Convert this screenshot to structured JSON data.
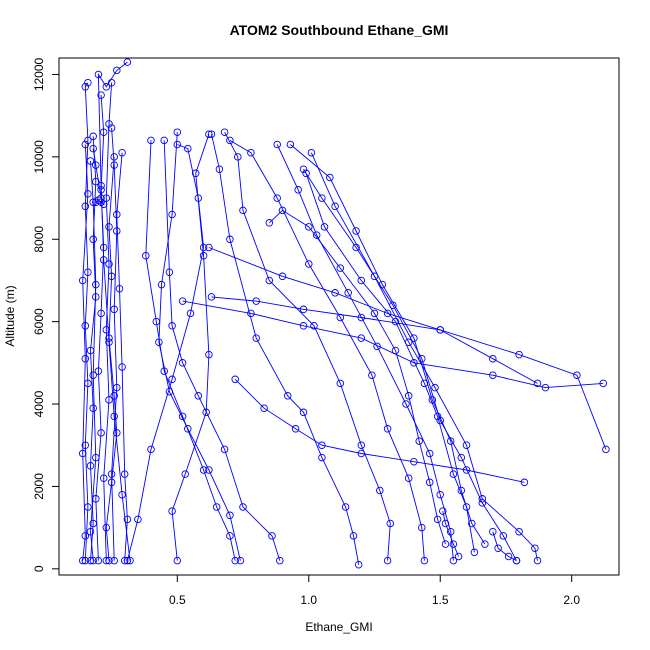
{
  "chart_data": {
    "type": "line",
    "title": "ATOM2 Southbound Ethane_GMI",
    "xlabel": "Ethane_GMI",
    "ylabel": "Altitude (m)",
    "xlim": [
      0.05,
      2.18
    ],
    "ylim": [
      -150,
      12400
    ],
    "x_ticks": [
      0.5,
      1.0,
      1.5,
      2.0
    ],
    "x_tick_labels": [
      "0.5",
      "1.0",
      "1.5",
      "2.0"
    ],
    "y_ticks": [
      0,
      2000,
      4000,
      6000,
      8000,
      10000,
      12000
    ],
    "y_tick_labels": [
      "0",
      "2000",
      "4000",
      "6000",
      "8000",
      "10000",
      "12000"
    ],
    "grid": false,
    "legend": "none",
    "marker": "open-circle",
    "color": "#0000ff",
    "profiles": [
      [
        [
          0.15,
          200
        ],
        [
          0.16,
          1500
        ],
        [
          0.15,
          3000
        ],
        [
          0.16,
          4500
        ],
        [
          0.15,
          5900
        ],
        [
          0.16,
          7200
        ],
        [
          0.15,
          8800
        ],
        [
          0.16,
          10400
        ],
        [
          0.15,
          11700
        ],
        [
          0.16,
          11800
        ]
      ],
      [
        [
          0.17,
          200
        ],
        [
          0.18,
          1100
        ],
        [
          0.17,
          2500
        ],
        [
          0.18,
          3900
        ],
        [
          0.17,
          5300
        ],
        [
          0.19,
          6600
        ],
        [
          0.18,
          8000
        ],
        [
          0.19,
          9400
        ],
        [
          0.18,
          10500
        ]
      ],
      [
        [
          0.2,
          200
        ],
        [
          0.19,
          1700
        ],
        [
          0.21,
          3300
        ],
        [
          0.2,
          4800
        ],
        [
          0.21,
          6200
        ],
        [
          0.22,
          7800
        ],
        [
          0.21,
          9200
        ],
        [
          0.22,
          10600
        ],
        [
          0.21,
          11500
        ]
      ],
      [
        [
          0.23,
          200
        ],
        [
          0.22,
          2200
        ],
        [
          0.24,
          4100
        ],
        [
          0.23,
          5800
        ],
        [
          0.24,
          7400
        ],
        [
          0.23,
          9000
        ],
        [
          0.24,
          10800
        ],
        [
          0.25,
          11800
        ]
      ],
      [
        [
          0.26,
          200
        ],
        [
          0.25,
          2300
        ],
        [
          0.27,
          4400
        ],
        [
          0.26,
          6300
        ],
        [
          0.27,
          8200
        ],
        [
          0.26,
          9800
        ],
        [
          0.25,
          10700
        ]
      ],
      [
        [
          0.18,
          200
        ],
        [
          0.17,
          900
        ],
        [
          0.19,
          2700
        ],
        [
          0.18,
          4700
        ],
        [
          0.19,
          6900
        ],
        [
          0.18,
          8900
        ],
        [
          0.17,
          9900
        ]
      ],
      [
        [
          0.3,
          200
        ],
        [
          0.31,
          1200
        ],
        [
          0.3,
          2300
        ],
        [
          0.29,
          4900
        ],
        [
          0.28,
          6800
        ],
        [
          0.27,
          8600
        ],
        [
          0.29,
          10100
        ]
      ],
      [
        [
          0.14,
          200
        ],
        [
          0.15,
          800
        ],
        [
          0.14,
          2800
        ],
        [
          0.15,
          5100
        ],
        [
          0.14,
          7000
        ],
        [
          0.16,
          9100
        ],
        [
          0.15,
          10300
        ]
      ],
      [
        [
          0.32,
          200
        ],
        [
          0.29,
          1800
        ],
        [
          0.26,
          3700
        ],
        [
          0.24,
          5500
        ],
        [
          0.22,
          7500
        ],
        [
          0.21,
          9300
        ],
        [
          0.2,
          12000
        ],
        [
          0.23,
          11700
        ],
        [
          0.27,
          12100
        ],
        [
          0.31,
          12300
        ]
      ],
      [
        [
          0.19,
          8900
        ],
        [
          0.2,
          8950
        ],
        [
          0.21,
          8900
        ],
        [
          0.22,
          8850
        ],
        [
          0.21,
          9000
        ],
        [
          0.19,
          9800
        ],
        [
          0.18,
          10200
        ]
      ],
      [
        [
          0.24,
          200
        ],
        [
          0.23,
          1000
        ],
        [
          0.25,
          2100
        ],
        [
          0.27,
          3300
        ],
        [
          0.26,
          4200
        ],
        [
          0.24,
          5600
        ],
        [
          0.25,
          7100
        ],
        [
          0.24,
          8300
        ],
        [
          0.26,
          10000
        ]
      ],
      [
        [
          0.72,
          200
        ],
        [
          0.7,
          800
        ],
        [
          0.65,
          1500
        ],
        [
          0.6,
          2400
        ],
        [
          0.52,
          3700
        ],
        [
          0.45,
          4800
        ],
        [
          0.42,
          6000
        ],
        [
          0.38,
          7600
        ],
        [
          0.4,
          10400
        ]
      ],
      [
        [
          0.89,
          200
        ],
        [
          0.86,
          800
        ],
        [
          0.75,
          1500
        ],
        [
          0.68,
          2900
        ],
        [
          0.58,
          4200
        ],
        [
          0.52,
          5000
        ],
        [
          0.48,
          5900
        ],
        [
          0.47,
          7200
        ],
        [
          0.45,
          10400
        ]
      ],
      [
        [
          0.74,
          200
        ],
        [
          0.7,
          1300
        ],
        [
          0.62,
          2400
        ],
        [
          0.54,
          3400
        ],
        [
          0.47,
          4300
        ],
        [
          0.43,
          5500
        ],
        [
          0.44,
          6900
        ],
        [
          0.48,
          8600
        ],
        [
          0.5,
          10600
        ]
      ],
      [
        [
          0.31,
          200
        ],
        [
          0.35,
          1200
        ],
        [
          0.4,
          2900
        ],
        [
          0.48,
          4600
        ],
        [
          0.55,
          6200
        ],
        [
          0.6,
          7800
        ],
        [
          0.58,
          9000
        ],
        [
          0.54,
          10200
        ],
        [
          0.5,
          10300
        ]
      ],
      [
        [
          0.5,
          200
        ],
        [
          0.48,
          1400
        ],
        [
          0.53,
          2300
        ],
        [
          0.61,
          3800
        ],
        [
          0.62,
          5200
        ],
        [
          0.6,
          7600
        ],
        [
          0.57,
          9600
        ],
        [
          0.62,
          10550
        ]
      ],
      [
        [
          1.19,
          100
        ],
        [
          1.17,
          800
        ],
        [
          1.14,
          1500
        ],
        [
          1.05,
          2700
        ],
        [
          0.98,
          3800
        ],
        [
          0.92,
          4200
        ],
        [
          0.8,
          5600
        ],
        [
          0.7,
          8000
        ],
        [
          0.66,
          9700
        ],
        [
          0.63,
          10550
        ]
      ],
      [
        [
          1.3,
          200
        ],
        [
          1.31,
          1100
        ],
        [
          1.27,
          1900
        ],
        [
          1.2,
          3000
        ],
        [
          1.12,
          4500
        ],
        [
          1.02,
          5900
        ],
        [
          0.85,
          7000
        ],
        [
          0.75,
          8700
        ],
        [
          0.73,
          10000
        ],
        [
          0.68,
          10600
        ]
      ],
      [
        [
          1.44,
          200
        ],
        [
          1.43,
          1000
        ],
        [
          1.38,
          2200
        ],
        [
          1.3,
          3400
        ],
        [
          1.24,
          4700
        ],
        [
          1.12,
          6100
        ],
        [
          1.0,
          7400
        ],
        [
          0.88,
          9000
        ],
        [
          0.78,
          10100
        ],
        [
          0.7,
          10400
        ]
      ],
      [
        [
          1.55,
          200
        ],
        [
          1.54,
          900
        ],
        [
          1.5,
          1800
        ],
        [
          1.46,
          2800
        ],
        [
          1.37,
          4000
        ],
        [
          1.26,
          5400
        ],
        [
          1.15,
          6700
        ],
        [
          1.03,
          8100
        ],
        [
          0.96,
          9200
        ],
        [
          0.88,
          10300
        ]
      ],
      [
        [
          1.67,
          600
        ],
        [
          1.62,
          1100
        ],
        [
          1.58,
          1900
        ],
        [
          1.54,
          3100
        ],
        [
          1.47,
          4100
        ],
        [
          1.4,
          5600
        ],
        [
          1.28,
          6900
        ],
        [
          1.18,
          8200
        ],
        [
          1.08,
          9500
        ],
        [
          0.93,
          10300
        ]
      ],
      [
        [
          1.79,
          200
        ],
        [
          1.74,
          800
        ],
        [
          1.66,
          1600
        ],
        [
          1.58,
          2700
        ],
        [
          1.5,
          3600
        ],
        [
          1.43,
          5100
        ],
        [
          1.32,
          6400
        ],
        [
          1.18,
          7800
        ],
        [
          1.05,
          9000
        ],
        [
          0.98,
          9700
        ]
      ],
      [
        [
          1.87,
          200
        ],
        [
          1.86,
          500
        ],
        [
          1.8,
          900
        ],
        [
          1.66,
          1700
        ],
        [
          1.6,
          3000
        ],
        [
          1.48,
          4400
        ],
        [
          1.38,
          5500
        ],
        [
          1.25,
          7100
        ],
        [
          1.1,
          8800
        ],
        [
          1.01,
          10100
        ]
      ],
      [
        [
          1.63,
          400
        ],
        [
          1.6,
          1500
        ],
        [
          1.55,
          2300
        ],
        [
          1.49,
          3700
        ],
        [
          1.44,
          4500
        ],
        [
          1.33,
          6000
        ],
        [
          1.2,
          7000
        ],
        [
          1.06,
          8300
        ],
        [
          0.99,
          9600
        ]
      ],
      [
        [
          2.13,
          2900
        ],
        [
          2.02,
          4700
        ],
        [
          1.8,
          5200
        ],
        [
          1.5,
          5800
        ],
        [
          1.2,
          6100
        ],
        [
          0.98,
          6300
        ],
        [
          0.8,
          6500
        ],
        [
          0.63,
          6600
        ]
      ],
      [
        [
          2.12,
          4500
        ],
        [
          1.9,
          4400
        ],
        [
          1.7,
          4700
        ],
        [
          1.4,
          5000
        ],
        [
          1.2,
          5600
        ],
        [
          0.98,
          5900
        ],
        [
          0.78,
          6200
        ],
        [
          0.52,
          6500
        ]
      ],
      [
        [
          1.87,
          4500
        ],
        [
          1.7,
          5100
        ],
        [
          1.5,
          5800
        ],
        [
          1.3,
          6200
        ],
        [
          1.1,
          6700
        ],
        [
          0.9,
          7100
        ],
        [
          0.62,
          7800
        ]
      ],
      [
        [
          1.82,
          2100
        ],
        [
          1.6,
          2400
        ],
        [
          1.4,
          2600
        ],
        [
          1.2,
          2800
        ],
        [
          1.05,
          3000
        ],
        [
          0.95,
          3400
        ],
        [
          0.83,
          3900
        ],
        [
          0.72,
          4600
        ]
      ],
      [
        [
          1.52,
          600
        ],
        [
          1.49,
          1200
        ],
        [
          1.46,
          2100
        ],
        [
          1.42,
          3100
        ],
        [
          1.38,
          4200
        ],
        [
          1.33,
          5300
        ],
        [
          1.25,
          6200
        ],
        [
          1.12,
          7300
        ],
        [
          1.0,
          8300
        ],
        [
          0.9,
          8700
        ],
        [
          0.85,
          8400
        ]
      ],
      [
        [
          1.79,
          200
        ],
        [
          1.76,
          300
        ],
        [
          1.72,
          500
        ],
        [
          1.7,
          900
        ]
      ],
      [
        [
          1.57,
          300
        ],
        [
          1.55,
          600
        ],
        [
          1.52,
          1100
        ],
        [
          1.51,
          1400
        ]
      ]
    ]
  }
}
